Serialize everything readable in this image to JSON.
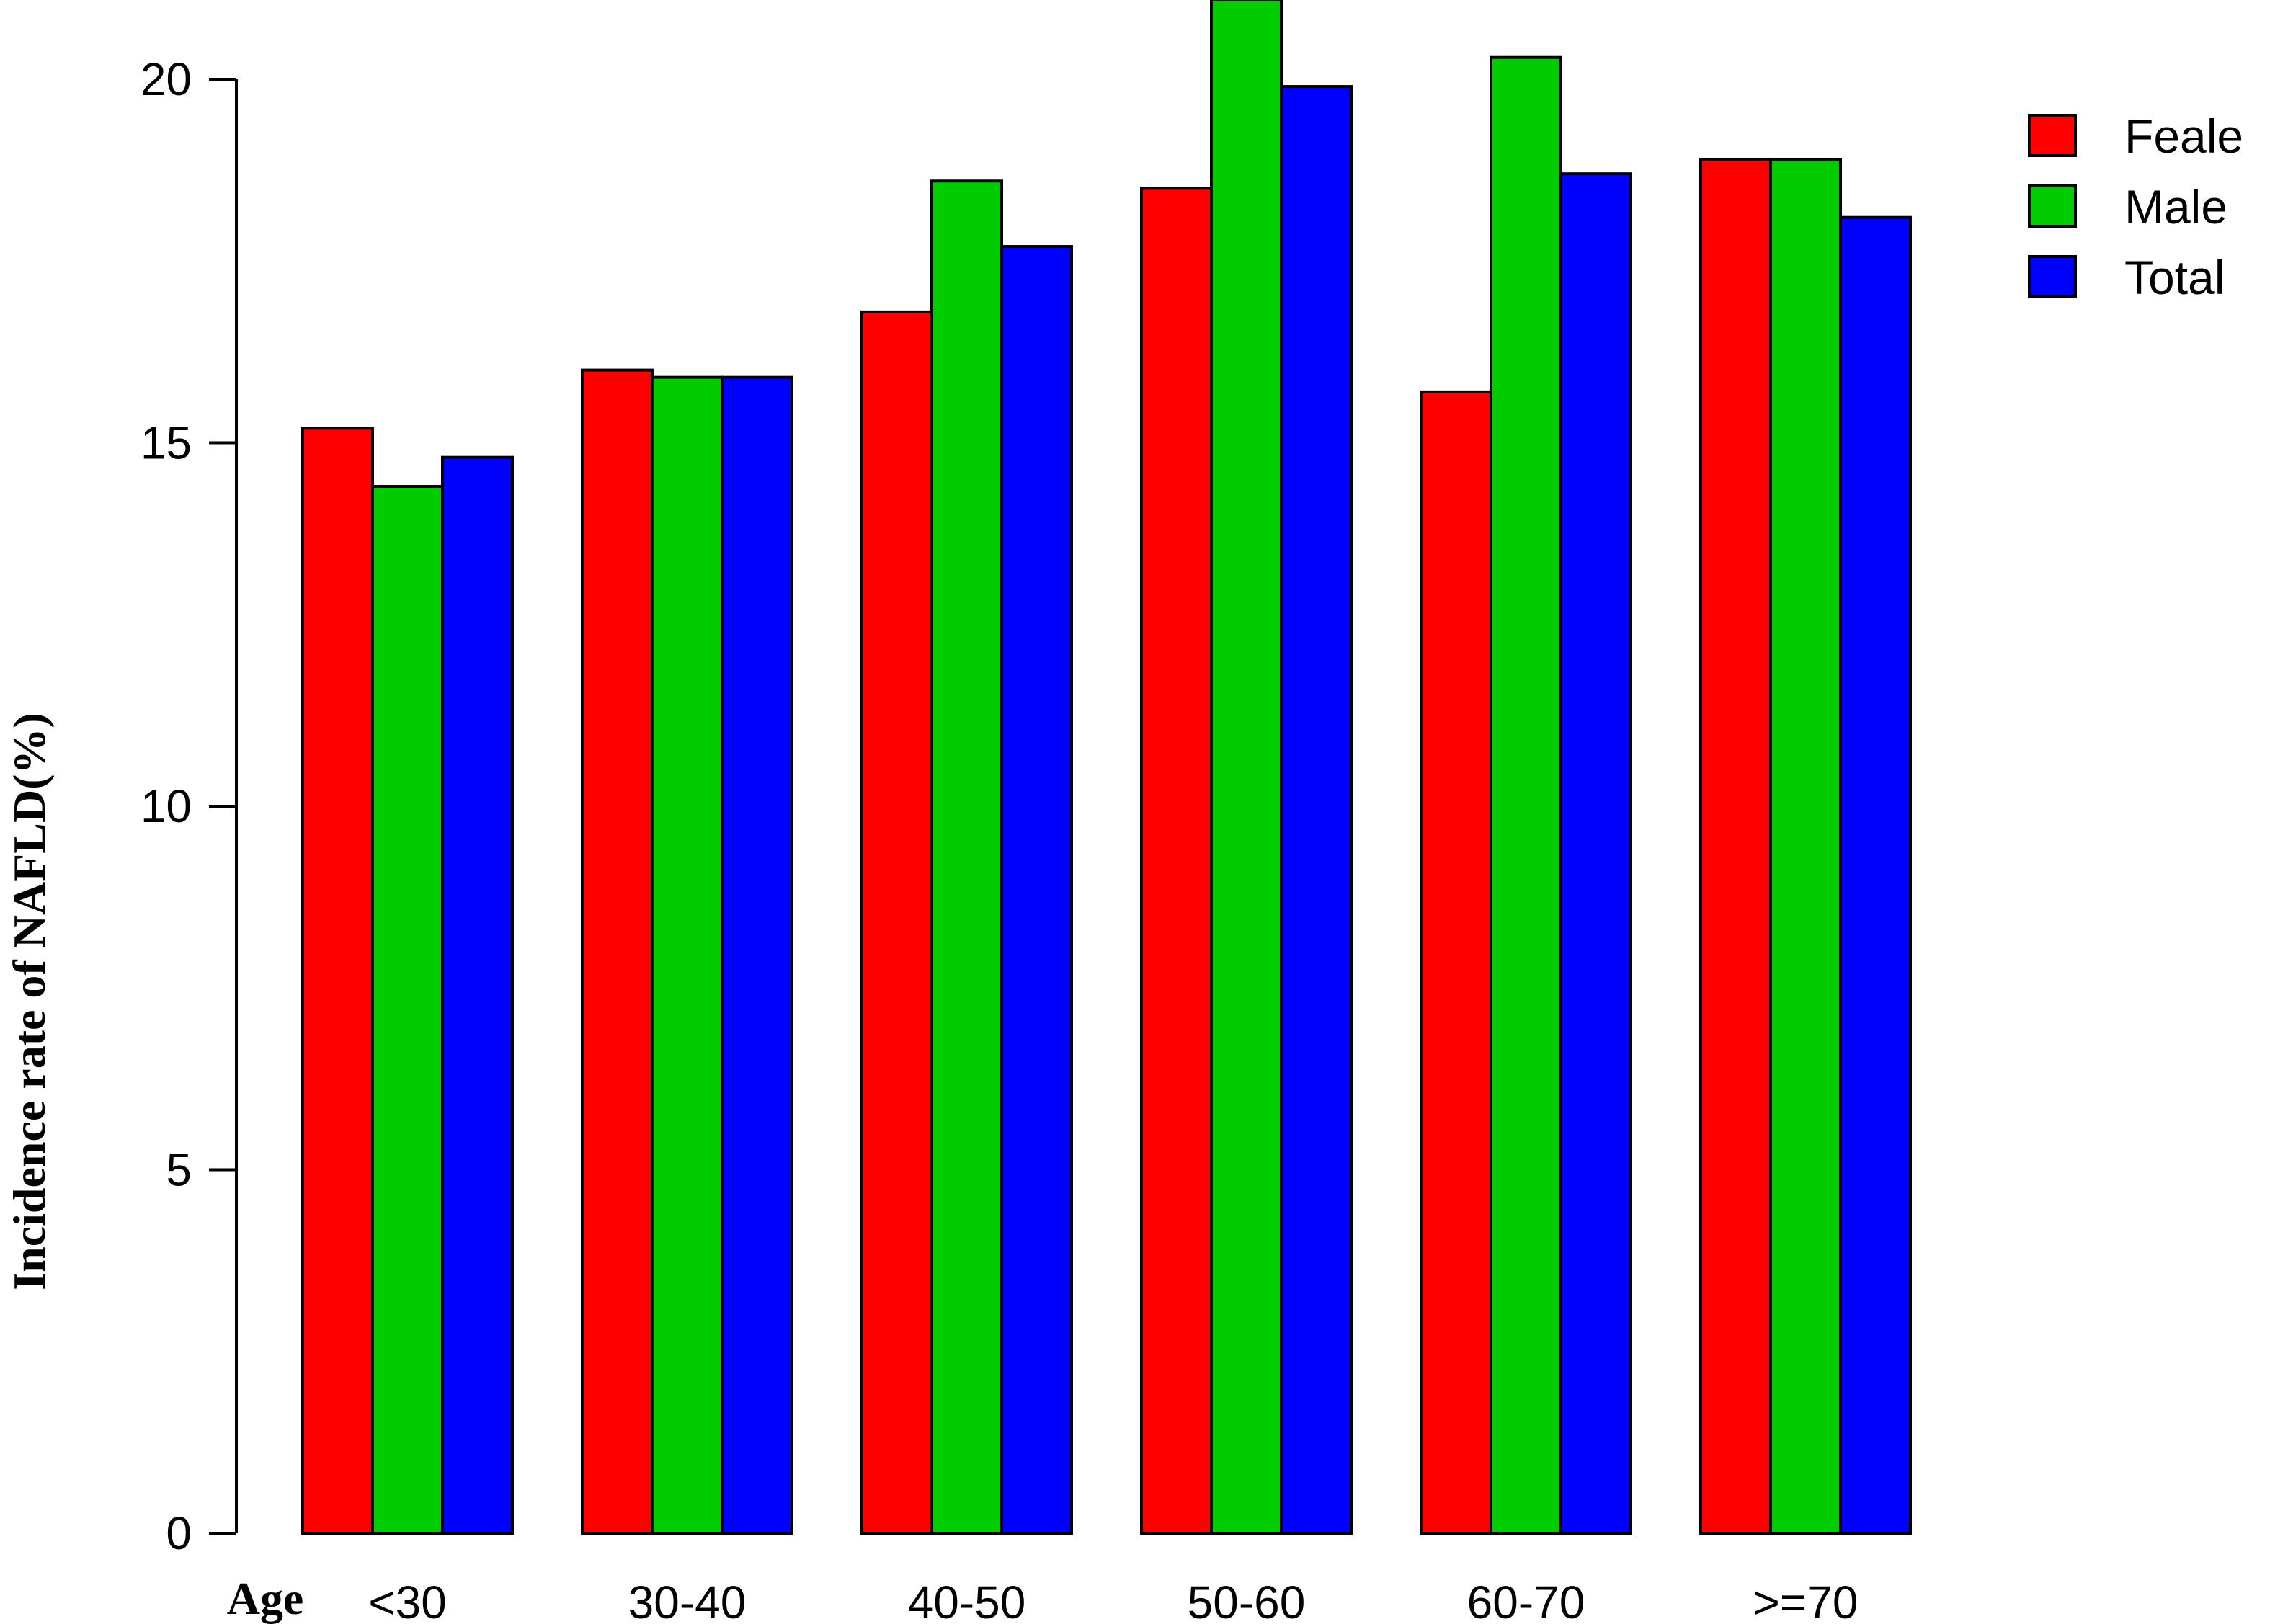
{
  "chart_data": {
    "type": "bar",
    "title": "",
    "xlabel": "Age",
    "ylabel": "Incidence rate of NAFLD(%)",
    "categories": [
      "<30",
      "30-40",
      "40-50",
      "50-60",
      "60-70",
      ">=70"
    ],
    "series": [
      {
        "name": "Feale",
        "color": "#ff0000",
        "values": [
          15.2,
          16.0,
          16.8,
          18.5,
          15.7,
          18.9
        ]
      },
      {
        "name": "Male",
        "color": "#00cc00",
        "values": [
          14.4,
          15.9,
          18.6,
          21.1,
          20.3,
          18.9
        ]
      },
      {
        "name": "Total",
        "color": "#0000ff",
        "values": [
          14.8,
          15.9,
          17.7,
          19.9,
          18.7,
          18.1
        ]
      }
    ],
    "ylim": [
      0,
      20
    ],
    "yticks": [
      0,
      5,
      10,
      15,
      20
    ],
    "grid": false,
    "legend_position": "top-right"
  }
}
